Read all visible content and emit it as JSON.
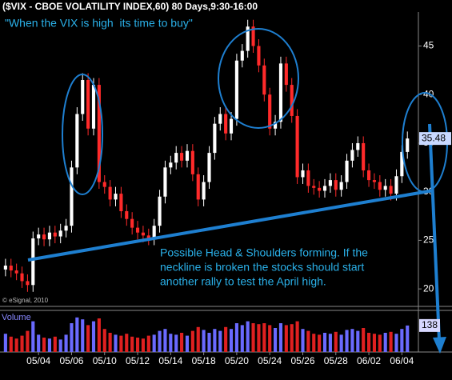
{
  "chart_data": {
    "type": "candlestick",
    "title": "($VIX - CBOE VOLATILITY INDEX,60) 80 Days,9:30-16:00",
    "headline": "\"When the VIX is high  its time to buy\"",
    "note_lines": [
      "Possible Head & Shoulders forming. If the",
      "neckline is broken the stocks should start",
      "another rally to test the April high."
    ],
    "credit": "© eSignal, 2010",
    "x": [
      0,
      1,
      2,
      3,
      4,
      5,
      6,
      7,
      8,
      9,
      10,
      11,
      12,
      13,
      14,
      15,
      16,
      17,
      18,
      19,
      20,
      21,
      22,
      23,
      24,
      25,
      26,
      27,
      28,
      29,
      30,
      31,
      32,
      33,
      34,
      35,
      36,
      37,
      38,
      39,
      40,
      41,
      42,
      43,
      44,
      45,
      46,
      47,
      48,
      49,
      50,
      51,
      52,
      53,
      54,
      55,
      56,
      57,
      58,
      59,
      60,
      61,
      62,
      63,
      64,
      65,
      66,
      67,
      68,
      69,
      70,
      71,
      72,
      73
    ],
    "open": [
      22.0,
      22.4,
      21.9,
      21.6,
      20.8,
      20.4,
      25.2,
      25.6,
      25.1,
      25.8,
      25.4,
      26.0,
      26.5,
      32.5,
      38.0,
      41.5,
      36.5,
      41.0,
      31.0,
      30.5,
      29.2,
      29.8,
      28.0,
      27.2,
      26.3,
      25.8,
      25.5,
      25.2,
      26.5,
      29.5,
      32.5,
      33.0,
      34.0,
      33.2,
      34.2,
      31.8,
      29.2,
      31.0,
      34.0,
      37.0,
      38.0,
      36.0,
      37.5,
      43.5,
      44.5,
      47.0,
      45.0,
      43.0,
      40.0,
      36.5,
      37.2,
      43.2,
      41.0,
      37.8,
      31.5,
      32.2,
      30.6,
      30.4,
      30.1,
      30.6,
      31.2,
      30.2,
      31.0,
      33.2,
      34.3,
      35.0,
      32.2,
      31.2,
      31.0,
      30.2,
      30.6,
      29.8,
      31.6,
      34.1
    ],
    "high": [
      23.1,
      23.1,
      22.6,
      22.3,
      21.5,
      25.9,
      26.3,
      26.3,
      26.5,
      26.5,
      26.7,
      27.2,
      33.2,
      38.7,
      42.2,
      42.2,
      41.7,
      41.7,
      31.7,
      31.2,
      30.5,
      30.5,
      28.7,
      27.9,
      27.0,
      26.5,
      26.2,
      27.2,
      30.2,
      33.2,
      33.7,
      34.7,
      34.7,
      34.9,
      34.9,
      32.5,
      31.7,
      34.7,
      37.7,
      38.7,
      38.7,
      38.2,
      44.2,
      45.2,
      47.7,
      47.7,
      45.7,
      43.7,
      40.7,
      37.9,
      43.9,
      43.9,
      41.7,
      38.5,
      32.9,
      32.9,
      31.3,
      31.1,
      31.3,
      31.9,
      31.9,
      31.7,
      33.9,
      35.0,
      35.7,
      35.7,
      32.9,
      31.9,
      31.7,
      31.3,
      31.3,
      32.3,
      34.8,
      36.2
    ],
    "low": [
      21.3,
      21.2,
      20.9,
      20.1,
      19.7,
      19.7,
      24.5,
      24.4,
      24.4,
      24.7,
      24.7,
      25.3,
      25.8,
      31.8,
      37.3,
      35.8,
      35.8,
      30.3,
      29.8,
      28.5,
      28.5,
      27.3,
      26.5,
      25.6,
      25.1,
      24.8,
      24.5,
      24.5,
      25.8,
      28.8,
      31.8,
      32.3,
      32.5,
      32.5,
      31.1,
      28.5,
      28.5,
      30.3,
      33.3,
      36.3,
      35.3,
      35.3,
      36.8,
      42.8,
      43.8,
      44.3,
      42.3,
      39.3,
      35.8,
      35.8,
      36.5,
      40.3,
      37.1,
      30.8,
      30.8,
      29.9,
      29.7,
      29.4,
      29.4,
      29.9,
      29.5,
      29.5,
      30.3,
      32.5,
      33.6,
      31.5,
      30.5,
      30.3,
      29.5,
      29.5,
      29.1,
      29.1,
      30.9,
      33.4
    ],
    "close": [
      22.4,
      21.9,
      21.6,
      20.8,
      20.4,
      25.2,
      25.6,
      25.1,
      25.8,
      25.4,
      26.0,
      26.5,
      32.5,
      38.0,
      41.5,
      36.5,
      41.0,
      31.0,
      30.5,
      29.2,
      29.8,
      28.0,
      27.2,
      26.3,
      25.8,
      25.5,
      25.2,
      26.5,
      29.5,
      32.5,
      33.0,
      34.0,
      33.2,
      34.2,
      31.8,
      29.2,
      31.0,
      34.0,
      37.0,
      38.0,
      36.0,
      37.5,
      43.5,
      44.5,
      47.0,
      45.0,
      43.0,
      40.0,
      36.5,
      37.2,
      43.2,
      41.0,
      37.8,
      31.5,
      32.2,
      30.6,
      30.4,
      30.1,
      30.6,
      31.2,
      30.2,
      31.0,
      33.2,
      34.3,
      35.0,
      32.2,
      31.2,
      31.0,
      30.2,
      30.6,
      29.8,
      31.6,
      34.1,
      35.48
    ],
    "up_color": "#ffffff",
    "down_color": "#ff2a2a",
    "xlim": [
      -1,
      75
    ],
    "xticks": [
      {
        "value": 6,
        "label": "05/04"
      },
      {
        "value": 12,
        "label": "05/06"
      },
      {
        "value": 18,
        "label": "05/10"
      },
      {
        "value": 24,
        "label": "05/12"
      },
      {
        "value": 30,
        "label": "05/14"
      },
      {
        "value": 36,
        "label": "05/18"
      },
      {
        "value": 42,
        "label": "05/20"
      },
      {
        "value": 48,
        "label": "05/24"
      },
      {
        "value": 54,
        "label": "05/26"
      },
      {
        "value": 60,
        "label": "05/28"
      },
      {
        "value": 66,
        "label": "06/02"
      },
      {
        "value": 72,
        "label": "06/04"
      }
    ],
    "ylim": [
      18.2,
      48.5
    ],
    "yticks": [
      20,
      25,
      30,
      35,
      40,
      45
    ],
    "volume": {
      "label": "Volume",
      "values": [
        95,
        80,
        70,
        85,
        110,
        160,
        90,
        75,
        70,
        80,
        65,
        90,
        150,
        180,
        170,
        140,
        160,
        175,
        120,
        100,
        90,
        85,
        95,
        80,
        75,
        70,
        85,
        90,
        110,
        120,
        95,
        90,
        100,
        85,
        110,
        130,
        115,
        100,
        120,
        110,
        130,
        120,
        150,
        140,
        160,
        150,
        145,
        150,
        140,
        125,
        150,
        140,
        145,
        160,
        120,
        110,
        95,
        90,
        100,
        95,
        105,
        90,
        115,
        120,
        110,
        125,
        100,
        95,
        90,
        100,
        105,
        95,
        120,
        138
      ],
      "ylim": [
        0,
        200
      ],
      "up_color": "#6a6aff",
      "down_color": "#e02020"
    }
  }
}
